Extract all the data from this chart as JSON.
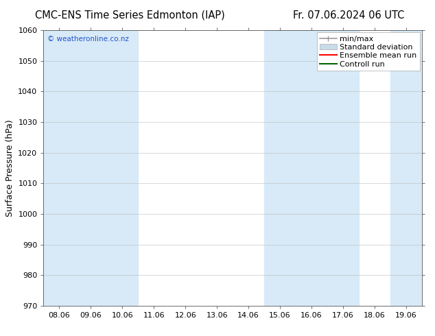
{
  "title_left": "CMC-ENS Time Series Edmonton (IAP)",
  "title_right": "Fr. 07.06.2024 06 UTC",
  "ylabel": "Surface Pressure (hPa)",
  "ylim": [
    970,
    1060
  ],
  "yticks": [
    970,
    980,
    990,
    1000,
    1010,
    1020,
    1030,
    1040,
    1050,
    1060
  ],
  "xtick_labels": [
    "08.06",
    "09.06",
    "10.06",
    "11.06",
    "12.06",
    "13.06",
    "14.06",
    "15.06",
    "16.06",
    "17.06",
    "18.06",
    "19.06"
  ],
  "watermark": "© weatheronline.co.nz",
  "watermark_color": "#2255cc",
  "background_color": "#ffffff",
  "plot_bg_color": "#ffffff",
  "shade_color": "#d8eaf7",
  "shaded_indices": [
    0,
    1,
    2,
    7,
    8,
    9,
    11
  ],
  "title_fontsize": 10.5,
  "ylabel_fontsize": 9,
  "tick_fontsize": 8,
  "legend_fontsize": 8,
  "minmax_color": "#999999",
  "stddev_color": "#c8dcea",
  "ensemble_color": "#ff0000",
  "control_color": "#006600"
}
